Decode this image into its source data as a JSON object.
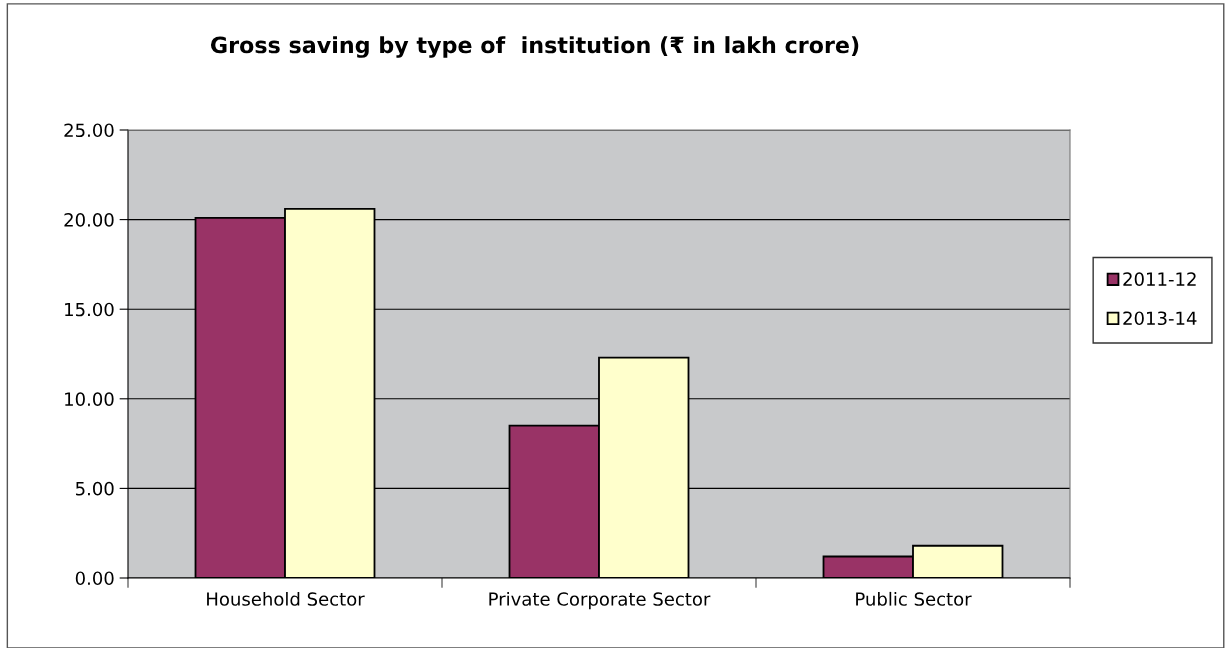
{
  "chart_data": {
    "type": "bar",
    "title": "Gross saving by type of  institution (₹ in lakh crore)",
    "categories": [
      "Household Sector",
      "Private Corporate Sector",
      "Public Sector"
    ],
    "series": [
      {
        "name": "2011-12",
        "color": "#993366",
        "values": [
          20.1,
          8.5,
          1.2
        ]
      },
      {
        "name": "2013-14",
        "color": "#ffffcc",
        "values": [
          20.6,
          12.3,
          1.8
        ]
      }
    ],
    "ylim": [
      0,
      25
    ],
    "yticks": [
      {
        "value": 0,
        "label": "0.00"
      },
      {
        "value": 5,
        "label": "5.00"
      },
      {
        "value": 10,
        "label": "10.00"
      },
      {
        "value": 15,
        "label": "15.00"
      },
      {
        "value": 20,
        "label": "20.00"
      },
      {
        "value": 25,
        "label": "25.00"
      }
    ],
    "grid": "y",
    "legend": "right"
  }
}
